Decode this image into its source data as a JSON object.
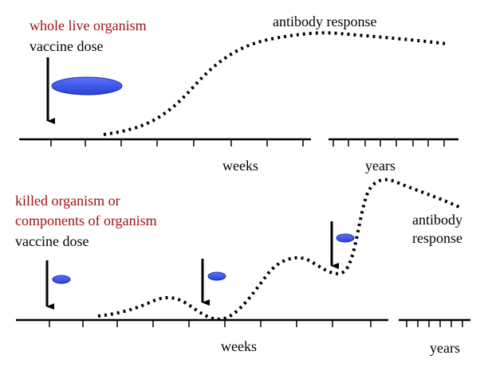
{
  "top_panel": {
    "vaccine_type": "whole live organism",
    "dose_label": "vaccine dose",
    "curve_label": "antibody response",
    "weeks_label": "weeks",
    "years_label": "years"
  },
  "bottom_panel": {
    "vaccine_type_line1": "killed organism or",
    "vaccine_type_line2": "components of organism",
    "dose_label": "vaccine dose",
    "curve_label_line1": "antibody",
    "curve_label_line2": "response",
    "weeks_label": "weeks",
    "years_label": "years"
  },
  "colors": {
    "vaccine_type_text": "#a01010",
    "antigen_fill": "#3a55e8",
    "antigen_stroke": "#1a2fb0",
    "line": "#000000"
  }
}
